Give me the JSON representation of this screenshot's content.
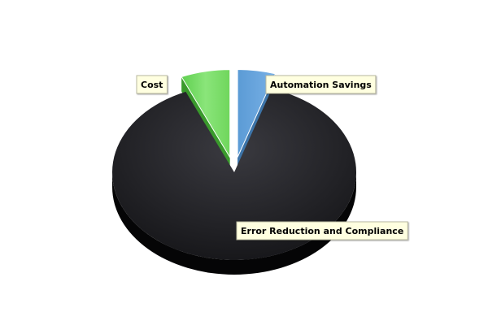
{
  "chart_data": {
    "type": "pie",
    "style": "3d",
    "title": "",
    "legend": "none",
    "slices": [
      {
        "label": "Automation Savings",
        "value": 5,
        "color": "#5b9bd5"
      },
      {
        "label": "Error Reduction and Compliance",
        "value": 88.5,
        "color": "#1f1f23"
      },
      {
        "label": "Cost",
        "value": 6.5,
        "color": "#6fd65c"
      }
    ],
    "label_box_color": "#ffffe0"
  }
}
